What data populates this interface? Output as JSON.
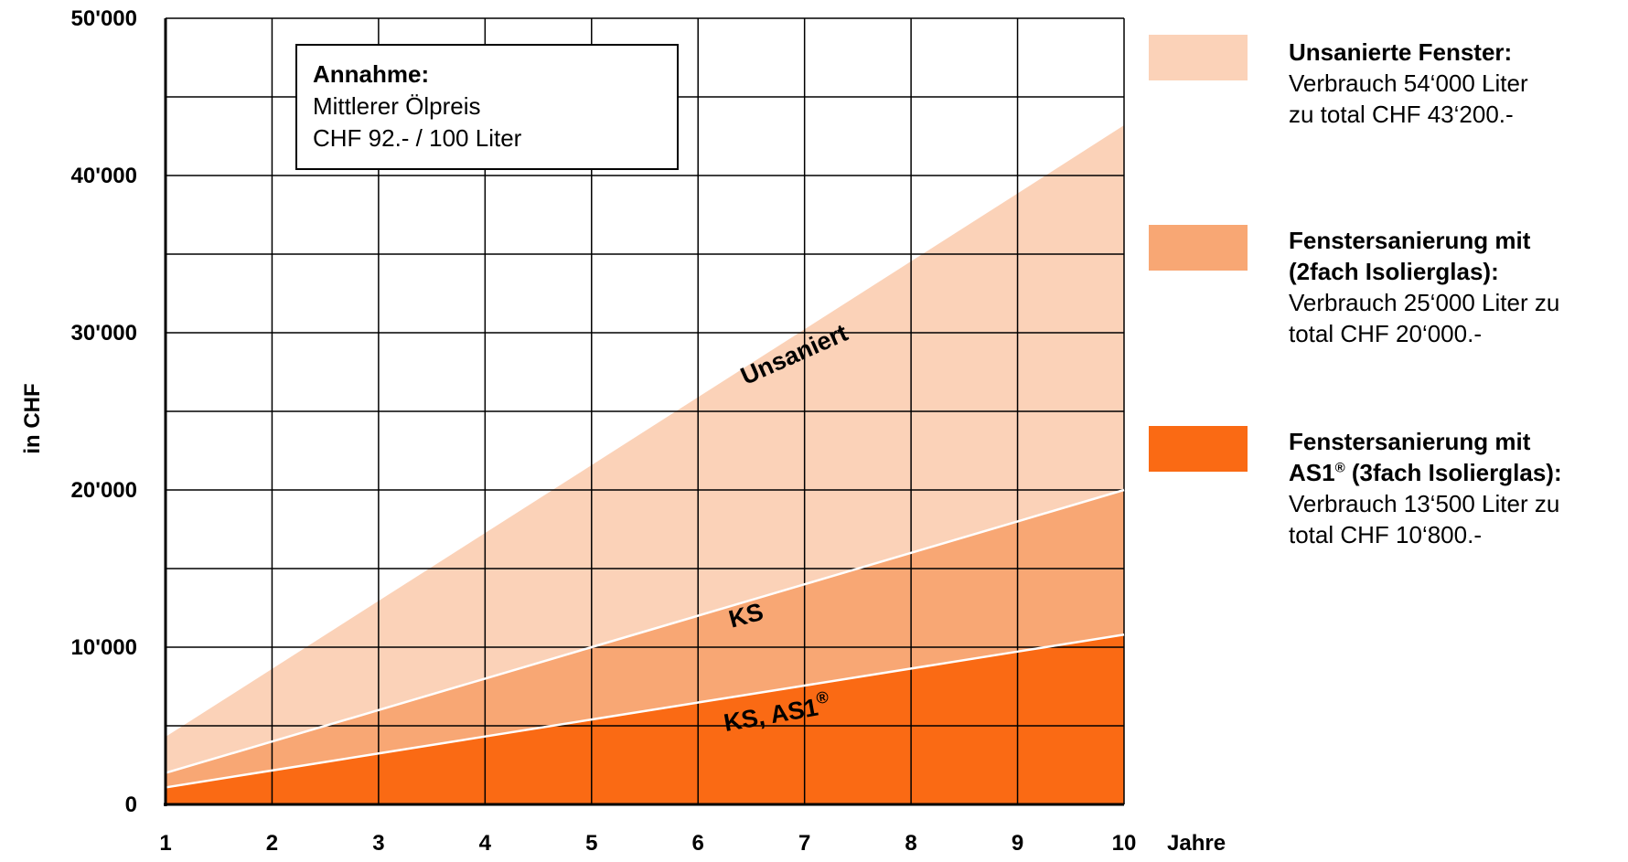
{
  "chart_data": {
    "type": "area",
    "x": [
      1,
      2,
      3,
      4,
      5,
      6,
      7,
      8,
      9,
      10
    ],
    "xlabel": "Jahre",
    "ylabel": "in CHF",
    "ylim": [
      0,
      50000
    ],
    "xlim": [
      1,
      10
    ],
    "y_ticks": [
      "0",
      "10'000",
      "20'000",
      "30'000",
      "40'000",
      "50'000"
    ],
    "x_ticks": [
      "1",
      "2",
      "3",
      "4",
      "5",
      "6",
      "7",
      "8",
      "9",
      "10"
    ],
    "grid": true,
    "legend_position": "right",
    "series": [
      {
        "name": "Unsaniert",
        "values": [
          4300,
          8620,
          12940,
          17260,
          21580,
          25900,
          30220,
          34540,
          38860,
          43200
        ],
        "color": "#fbd2b8"
      },
      {
        "name": "KS",
        "values": [
          2000,
          4000,
          6000,
          8000,
          10000,
          12000,
          14000,
          16000,
          18000,
          20000
        ],
        "color": "#f8a774"
      },
      {
        "name": "KS, AS1®",
        "values": [
          1080,
          2160,
          3240,
          4320,
          5400,
          6480,
          7560,
          8640,
          9720,
          10800
        ],
        "color": "#fa6a14"
      }
    ]
  },
  "annotation": {
    "title": "Annahme:",
    "line1": "Mittlerer Ölpreis",
    "line2": "CHF 92.- / 100 Liter"
  },
  "labels": {
    "unsaniert": "Unsaniert",
    "ks": "KS",
    "ks_as1": "KS, AS1",
    "registered": "®"
  },
  "legend": [
    {
      "title": "Unsanierte Fenster:",
      "lines": [
        "Verbrauch 54‘000 Liter",
        "zu total CHF 43‘200.-"
      ],
      "color": "#fbd2b8"
    },
    {
      "title": "Fenstersanierung mit",
      "title2": "(2fach Isolierglas):",
      "lines": [
        "Verbrauch 25‘000 Liter zu",
        "total CHF 20‘000.-"
      ],
      "color": "#f8a774"
    },
    {
      "title": "Fenstersanierung mit",
      "title2_prefix": "AS1",
      "title2_sup": "®",
      "title2_suffix": " (3fach Isolierglas):",
      "lines": [
        "Verbrauch 13‘500 Liter zu",
        "total CHF 10‘800.-"
      ],
      "color": "#fa6a14"
    }
  ]
}
